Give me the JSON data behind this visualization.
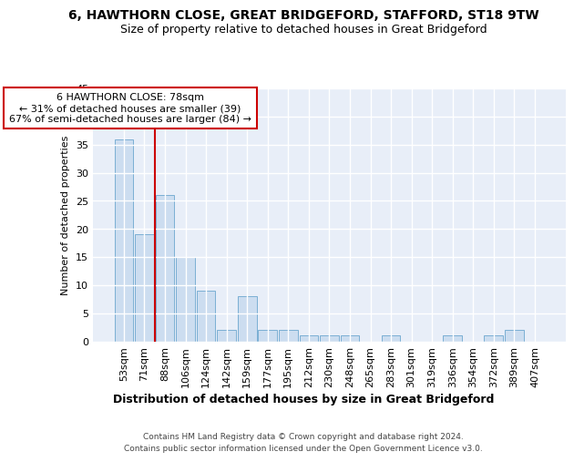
{
  "title1": "6, HAWTHORN CLOSE, GREAT BRIDGEFORD, STAFFORD, ST18 9TW",
  "title2": "Size of property relative to detached houses in Great Bridgeford",
  "xlabel": "Distribution of detached houses by size in Great Bridgeford",
  "ylabel": "Number of detached properties",
  "categories": [
    "53sqm",
    "71sqm",
    "88sqm",
    "106sqm",
    "124sqm",
    "142sqm",
    "159sqm",
    "177sqm",
    "195sqm",
    "212sqm",
    "230sqm",
    "248sqm",
    "265sqm",
    "283sqm",
    "301sqm",
    "319sqm",
    "336sqm",
    "354sqm",
    "372sqm",
    "389sqm",
    "407sqm"
  ],
  "values": [
    36,
    19,
    26,
    15,
    9,
    2,
    8,
    2,
    2,
    1,
    1,
    1,
    0,
    1,
    0,
    0,
    1,
    0,
    1,
    2,
    0
  ],
  "bar_color": "#ccddf0",
  "bar_edge_color": "#7bafd4",
  "bar_width": 0.92,
  "ylim": [
    0,
    45
  ],
  "yticks": [
    0,
    5,
    10,
    15,
    20,
    25,
    30,
    35,
    40,
    45
  ],
  "red_line_x": 1.5,
  "annotation_line1": "6 HAWTHORN CLOSE: 78sqm",
  "annotation_line2": "← 31% of detached houses are smaller (39)",
  "annotation_line3": "67% of semi-detached houses are larger (84) →",
  "annotation_box_color": "#ffffff",
  "annotation_box_edge": "#cc0000",
  "footer1": "Contains HM Land Registry data © Crown copyright and database right 2024.",
  "footer2": "Contains public sector information licensed under the Open Government Licence v3.0.",
  "fig_background": "#ffffff",
  "plot_background": "#e8eef8",
  "grid_color": "#ffffff",
  "title1_fontsize": 10,
  "title2_fontsize": 9,
  "xlabel_fontsize": 9,
  "ylabel_fontsize": 8,
  "tick_fontsize": 8
}
